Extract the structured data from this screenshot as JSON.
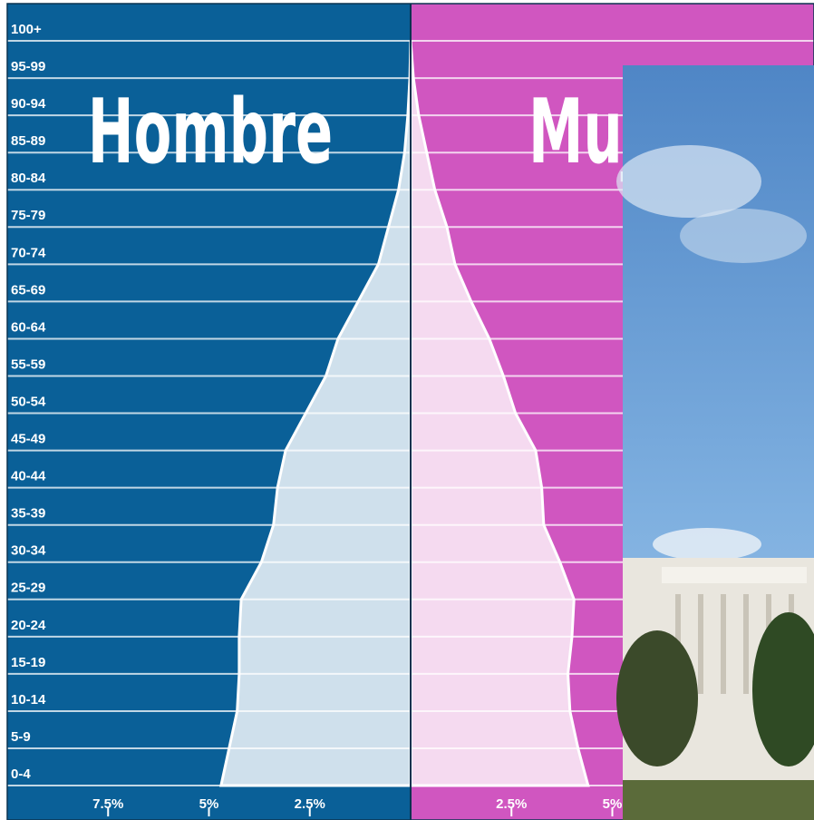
{
  "chart_data": {
    "type": "pyramid",
    "categories": [
      "100+",
      "95-99",
      "90-94",
      "85-89",
      "80-84",
      "75-79",
      "70-74",
      "65-69",
      "60-64",
      "55-59",
      "50-54",
      "45-49",
      "40-44",
      "35-39",
      "30-34",
      "25-29",
      "20-24",
      "15-19",
      "10-14",
      "5-9",
      "0-4"
    ],
    "series": [
      {
        "name": "Hombre",
        "color": "#0a6098",
        "fill": "#cfe0ec",
        "values": [
          0,
          0.02,
          0.07,
          0.15,
          0.3,
          0.55,
          0.8,
          1.3,
          1.8,
          2.1,
          2.6,
          3.1,
          3.3,
          3.4,
          3.7,
          4.2,
          4.25,
          4.25,
          4.3,
          4.5,
          4.7
        ]
      },
      {
        "name": "Mujer",
        "color": "#d056c0",
        "fill": "#f5daf0",
        "values": [
          0,
          0.07,
          0.2,
          0.4,
          0.6,
          0.9,
          1.1,
          1.5,
          1.95,
          2.3,
          2.6,
          3.1,
          3.25,
          3.3,
          3.7,
          4.05,
          4.0,
          3.9,
          3.95,
          4.15,
          4.4
        ]
      }
    ],
    "xlim": [
      -10,
      10
    ],
    "xticks": [
      {
        "value": -7.5,
        "label": "7.5%"
      },
      {
        "value": -5,
        "label": "5%"
      },
      {
        "value": -2.5,
        "label": "2.5%"
      },
      {
        "value": 2.5,
        "label": "2.5%"
      },
      {
        "value": 5,
        "label": "5%"
      }
    ]
  }
}
